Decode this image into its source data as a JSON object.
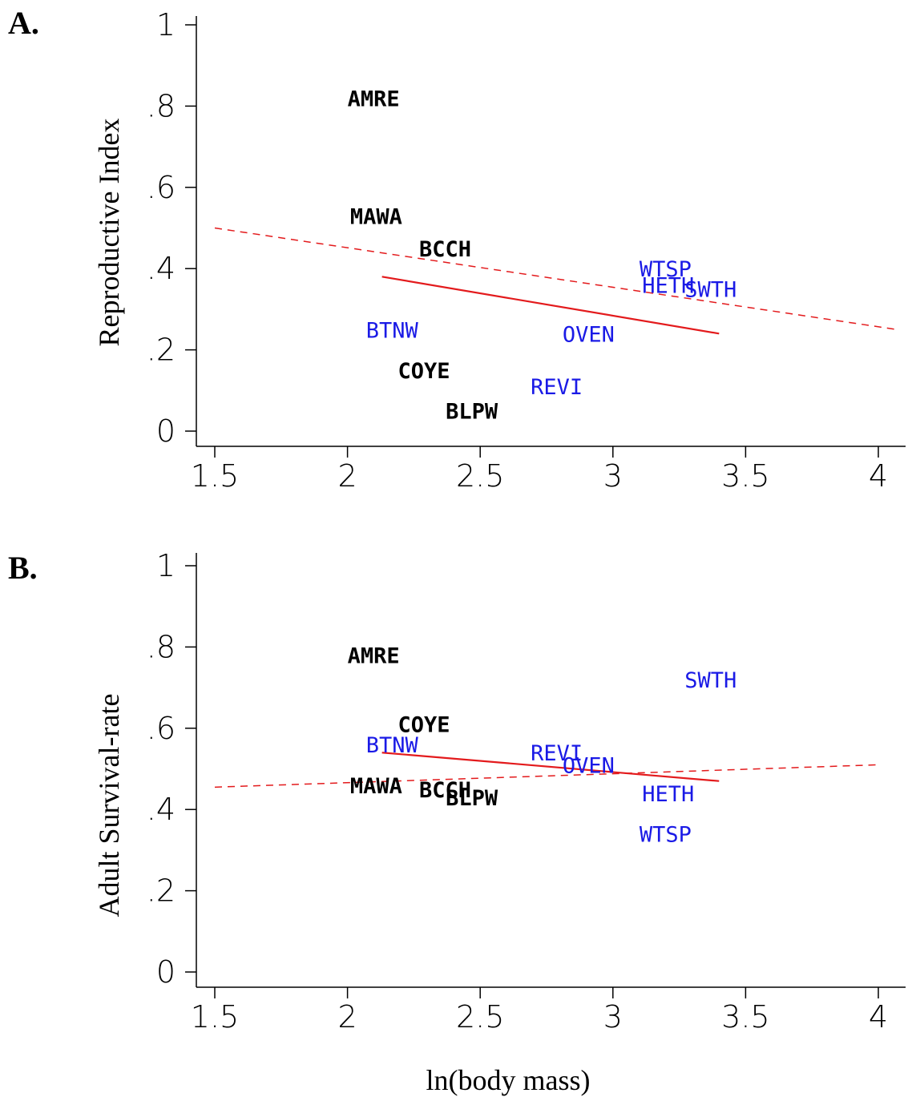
{
  "chart_data": [
    {
      "type": "scatter",
      "panel_label": "A.",
      "ylabel": "Reproductive Index",
      "xlabel": "",
      "xlim": [
        1.45,
        4.12
      ],
      "ylim": [
        -0.03,
        1.04
      ],
      "x_ticks": [
        {
          "value": 1.5,
          "label": "1.5"
        },
        {
          "value": 2,
          "label": "2"
        },
        {
          "value": 2.5,
          "label": "2.5"
        },
        {
          "value": 3,
          "label": "3"
        },
        {
          "value": 3.5,
          "label": "3.5"
        },
        {
          "value": 4,
          "label": "4"
        }
      ],
      "y_ticks": [
        {
          "value": 0,
          "label": "0"
        },
        {
          "value": 0.2,
          "label": ".2"
        },
        {
          "value": 0.4,
          "label": ".4"
        },
        {
          "value": 0.6,
          "label": ".6"
        },
        {
          "value": 0.8,
          "label": ".8"
        },
        {
          "value": 1,
          "label": "1"
        }
      ],
      "points": [
        {
          "label": "AMRE",
          "x": 2.0,
          "y": 0.82,
          "group": "black"
        },
        {
          "label": "MAWA",
          "x": 2.01,
          "y": 0.53,
          "group": "black"
        },
        {
          "label": "BCCH",
          "x": 2.27,
          "y": 0.45,
          "group": "black"
        },
        {
          "label": "COYE",
          "x": 2.19,
          "y": 0.15,
          "group": "black"
        },
        {
          "label": "BLPW",
          "x": 2.37,
          "y": 0.05,
          "group": "black"
        },
        {
          "label": "BTNW",
          "x": 2.07,
          "y": 0.25,
          "group": "blue"
        },
        {
          "label": "OVEN",
          "x": 2.81,
          "y": 0.24,
          "group": "blue"
        },
        {
          "label": "REVI",
          "x": 2.69,
          "y": 0.11,
          "group": "blue"
        },
        {
          "label": "WTSP",
          "x": 3.1,
          "y": 0.4,
          "group": "blue"
        },
        {
          "label": "HETH",
          "x": 3.11,
          "y": 0.36,
          "group": "blue"
        },
        {
          "label": "SWTH",
          "x": 3.27,
          "y": 0.35,
          "group": "blue"
        }
      ],
      "fit_solid": {
        "x": [
          2.13,
          3.4
        ],
        "y": [
          0.38,
          0.24
        ]
      },
      "fit_dashed": {
        "x": [
          1.5,
          4.07
        ],
        "y": [
          0.5,
          0.25
        ]
      }
    },
    {
      "type": "scatter",
      "panel_label": "B.",
      "ylabel": "Adult Survival-rate",
      "xlabel": "ln(body mass)",
      "xlim": [
        1.45,
        4.12
      ],
      "ylim": [
        -0.03,
        1.04
      ],
      "x_ticks": [
        {
          "value": 1.5,
          "label": "1.5"
        },
        {
          "value": 2,
          "label": "2"
        },
        {
          "value": 2.5,
          "label": "2.5"
        },
        {
          "value": 3,
          "label": "3"
        },
        {
          "value": 3.5,
          "label": "3.5"
        },
        {
          "value": 4,
          "label": "4"
        }
      ],
      "y_ticks": [
        {
          "value": 0,
          "label": "0"
        },
        {
          "value": 0.2,
          "label": ".2"
        },
        {
          "value": 0.4,
          "label": ".4"
        },
        {
          "value": 0.6,
          "label": ".6"
        },
        {
          "value": 0.8,
          "label": ".8"
        },
        {
          "value": 1,
          "label": "1"
        }
      ],
      "points": [
        {
          "label": "AMRE",
          "x": 2.0,
          "y": 0.78,
          "group": "black"
        },
        {
          "label": "COYE",
          "x": 2.19,
          "y": 0.61,
          "group": "black"
        },
        {
          "label": "MAWA",
          "x": 2.01,
          "y": 0.46,
          "group": "black"
        },
        {
          "label": "BCCH",
          "x": 2.27,
          "y": 0.45,
          "group": "black"
        },
        {
          "label": "BLPW",
          "x": 2.37,
          "y": 0.43,
          "group": "black"
        },
        {
          "label": "BTNW",
          "x": 2.07,
          "y": 0.56,
          "group": "blue"
        },
        {
          "label": "REVI",
          "x": 2.69,
          "y": 0.54,
          "group": "blue"
        },
        {
          "label": "OVEN",
          "x": 2.81,
          "y": 0.51,
          "group": "blue"
        },
        {
          "label": "SWTH",
          "x": 3.27,
          "y": 0.72,
          "group": "blue"
        },
        {
          "label": "HETH",
          "x": 3.11,
          "y": 0.44,
          "group": "blue"
        },
        {
          "label": "WTSP",
          "x": 3.1,
          "y": 0.34,
          "group": "blue"
        }
      ],
      "fit_solid": {
        "x": [
          2.13,
          3.4
        ],
        "y": [
          0.54,
          0.47
        ]
      },
      "fit_dashed": {
        "x": [
          1.5,
          4.0
        ],
        "y": [
          0.455,
          0.51
        ]
      }
    }
  ],
  "colors": {
    "black_group": "#000000",
    "blue_group": "#1a1ae6",
    "fit_line": "#e31a1c"
  }
}
